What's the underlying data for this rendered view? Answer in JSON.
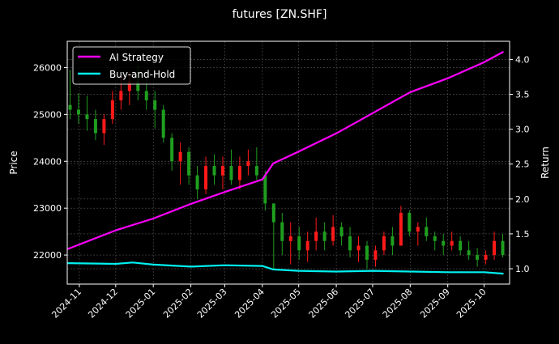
{
  "chart_data": {
    "type": "candlestick+line",
    "title": "futures [ZN.SHF]",
    "xlabel": "",
    "ylabel_left": "Price",
    "ylabel_right": "Return",
    "xlim": [
      "2024-10-22",
      "2025-10-22"
    ],
    "ylim_left": [
      21380,
      26560
    ],
    "ylim_right": [
      0.78,
      4.26
    ],
    "grid": true,
    "legend_placement": "top-left",
    "x_ticks": [
      "2024-11",
      "2024-12",
      "2025-01",
      "2025-02",
      "2025-03",
      "2025-04",
      "2025-05",
      "2025-06",
      "2025-07",
      "2025-08",
      "2025-09",
      "2025-10"
    ],
    "y_ticks_left": [
      22000,
      23000,
      24000,
      25000,
      26000
    ],
    "y_ticks_right": [
      "1.0",
      "1.5",
      "2.0",
      "2.5",
      "3.0",
      "3.5",
      "4.0"
    ],
    "colors": {
      "background": "#000000",
      "up": "#ff1a1a",
      "down": "#1f9e1f",
      "ai_strategy": "#ff00ff",
      "buy_and_hold": "#00f0f0",
      "grid": "#555555"
    },
    "candles_columns": [
      "date",
      "open",
      "high",
      "low",
      "close"
    ],
    "candles": [
      [
        "2024-10-21",
        25200,
        25950,
        24900,
        25100
      ],
      [
        "2024-10-28",
        25100,
        25450,
        24800,
        25000
      ],
      [
        "2024-11-04",
        25000,
        25400,
        24650,
        24900
      ],
      [
        "2024-11-11",
        24900,
        25100,
        24450,
        24600
      ],
      [
        "2024-11-18",
        24600,
        25000,
        24350,
        24900
      ],
      [
        "2024-11-25",
        24900,
        25500,
        24800,
        25300
      ],
      [
        "2024-12-02",
        25300,
        25800,
        25100,
        25500
      ],
      [
        "2024-12-09",
        25500,
        25900,
        25200,
        25700
      ],
      [
        "2024-12-16",
        25700,
        26050,
        25300,
        25500
      ],
      [
        "2024-12-23",
        25500,
        25800,
        25100,
        25300
      ],
      [
        "2024-12-30",
        25300,
        25500,
        24700,
        25100
      ],
      [
        "2025-01-06",
        25100,
        25200,
        24400,
        24500
      ],
      [
        "2025-01-13",
        24500,
        24600,
        23800,
        24000
      ],
      [
        "2025-01-20",
        24000,
        24400,
        23500,
        24200
      ],
      [
        "2025-01-27",
        24200,
        24300,
        23500,
        23700
      ],
      [
        "2025-02-03",
        23700,
        23900,
        23200,
        23400
      ],
      [
        "2025-02-10",
        23400,
        24100,
        23300,
        23900
      ],
      [
        "2025-02-17",
        23900,
        24150,
        23500,
        23700
      ],
      [
        "2025-02-24",
        23700,
        24100,
        23400,
        23900
      ],
      [
        "2025-03-03",
        23900,
        24250,
        23500,
        23600
      ],
      [
        "2025-03-10",
        23600,
        24100,
        23400,
        23900
      ],
      [
        "2025-03-17",
        23900,
        24250,
        23700,
        24000
      ],
      [
        "2025-03-24",
        23900,
        24300,
        23600,
        23700
      ],
      [
        "2025-03-31",
        23700,
        23800,
        22950,
        23100
      ],
      [
        "2025-04-07",
        23100,
        23100,
        21700,
        22700
      ],
      [
        "2025-04-14",
        22700,
        22900,
        22000,
        22300
      ],
      [
        "2025-04-21",
        22300,
        22700,
        21800,
        22400
      ],
      [
        "2025-04-28",
        22400,
        22600,
        21900,
        22100
      ],
      [
        "2025-05-05",
        22100,
        22500,
        21850,
        22300
      ],
      [
        "2025-05-12",
        22300,
        22800,
        22100,
        22500
      ],
      [
        "2025-05-19",
        22500,
        22700,
        22100,
        22300
      ],
      [
        "2025-05-26",
        22300,
        22850,
        22200,
        22600
      ],
      [
        "2025-06-02",
        22600,
        22700,
        22200,
        22400
      ],
      [
        "2025-06-09",
        22400,
        22600,
        21950,
        22100
      ],
      [
        "2025-06-16",
        22100,
        22400,
        21850,
        22200
      ],
      [
        "2025-06-23",
        22200,
        22300,
        21700,
        21900
      ],
      [
        "2025-06-30",
        21900,
        22200,
        21750,
        22100
      ],
      [
        "2025-07-07",
        22100,
        22500,
        22000,
        22400
      ],
      [
        "2025-07-14",
        22400,
        22600,
        22000,
        22200
      ],
      [
        "2025-07-21",
        22200,
        23050,
        22200,
        22900
      ],
      [
        "2025-07-28",
        22900,
        22950,
        22400,
        22500
      ],
      [
        "2025-08-04",
        22500,
        22700,
        22200,
        22600
      ],
      [
        "2025-08-11",
        22600,
        22800,
        22300,
        22400
      ],
      [
        "2025-08-18",
        22400,
        22500,
        22100,
        22300
      ],
      [
        "2025-08-25",
        22300,
        22450,
        22000,
        22200
      ],
      [
        "2025-09-01",
        22200,
        22500,
        22100,
        22300
      ],
      [
        "2025-09-08",
        22300,
        22400,
        22000,
        22100
      ],
      [
        "2025-09-15",
        22100,
        22300,
        21900,
        22000
      ],
      [
        "2025-09-22",
        22000,
        22150,
        21750,
        21900
      ],
      [
        "2025-09-29",
        21900,
        22100,
        21800,
        22000
      ],
      [
        "2025-10-06",
        22000,
        22500,
        21900,
        22300
      ],
      [
        "2025-10-13",
        22300,
        22450,
        21950,
        22000
      ]
    ],
    "series": [
      {
        "name": "AI Strategy",
        "axis": "right",
        "x": [
          "2024-10-22",
          "2024-12-01",
          "2025-01-01",
          "2025-02-01",
          "2025-03-01",
          "2025-04-01",
          "2025-04-10",
          "2025-05-01",
          "2025-06-01",
          "2025-07-01",
          "2025-08-01",
          "2025-09-01",
          "2025-10-01",
          "2025-10-17"
        ],
        "values": [
          1.28,
          1.55,
          1.72,
          1.93,
          2.1,
          2.28,
          2.51,
          2.68,
          2.94,
          3.23,
          3.53,
          3.73,
          3.96,
          4.11
        ]
      },
      {
        "name": "Buy-and-Hold",
        "axis": "right",
        "x": [
          "2024-10-22",
          "2024-12-01",
          "2024-12-15",
          "2025-01-01",
          "2025-02-01",
          "2025-03-01",
          "2025-04-01",
          "2025-04-10",
          "2025-05-01",
          "2025-06-01",
          "2025-07-01",
          "2025-08-01",
          "2025-09-01",
          "2025-10-01",
          "2025-10-17"
        ],
        "values": [
          1.08,
          1.07,
          1.09,
          1.06,
          1.03,
          1.05,
          1.04,
          0.99,
          0.97,
          0.96,
          0.97,
          0.96,
          0.95,
          0.95,
          0.93
        ]
      }
    ]
  }
}
